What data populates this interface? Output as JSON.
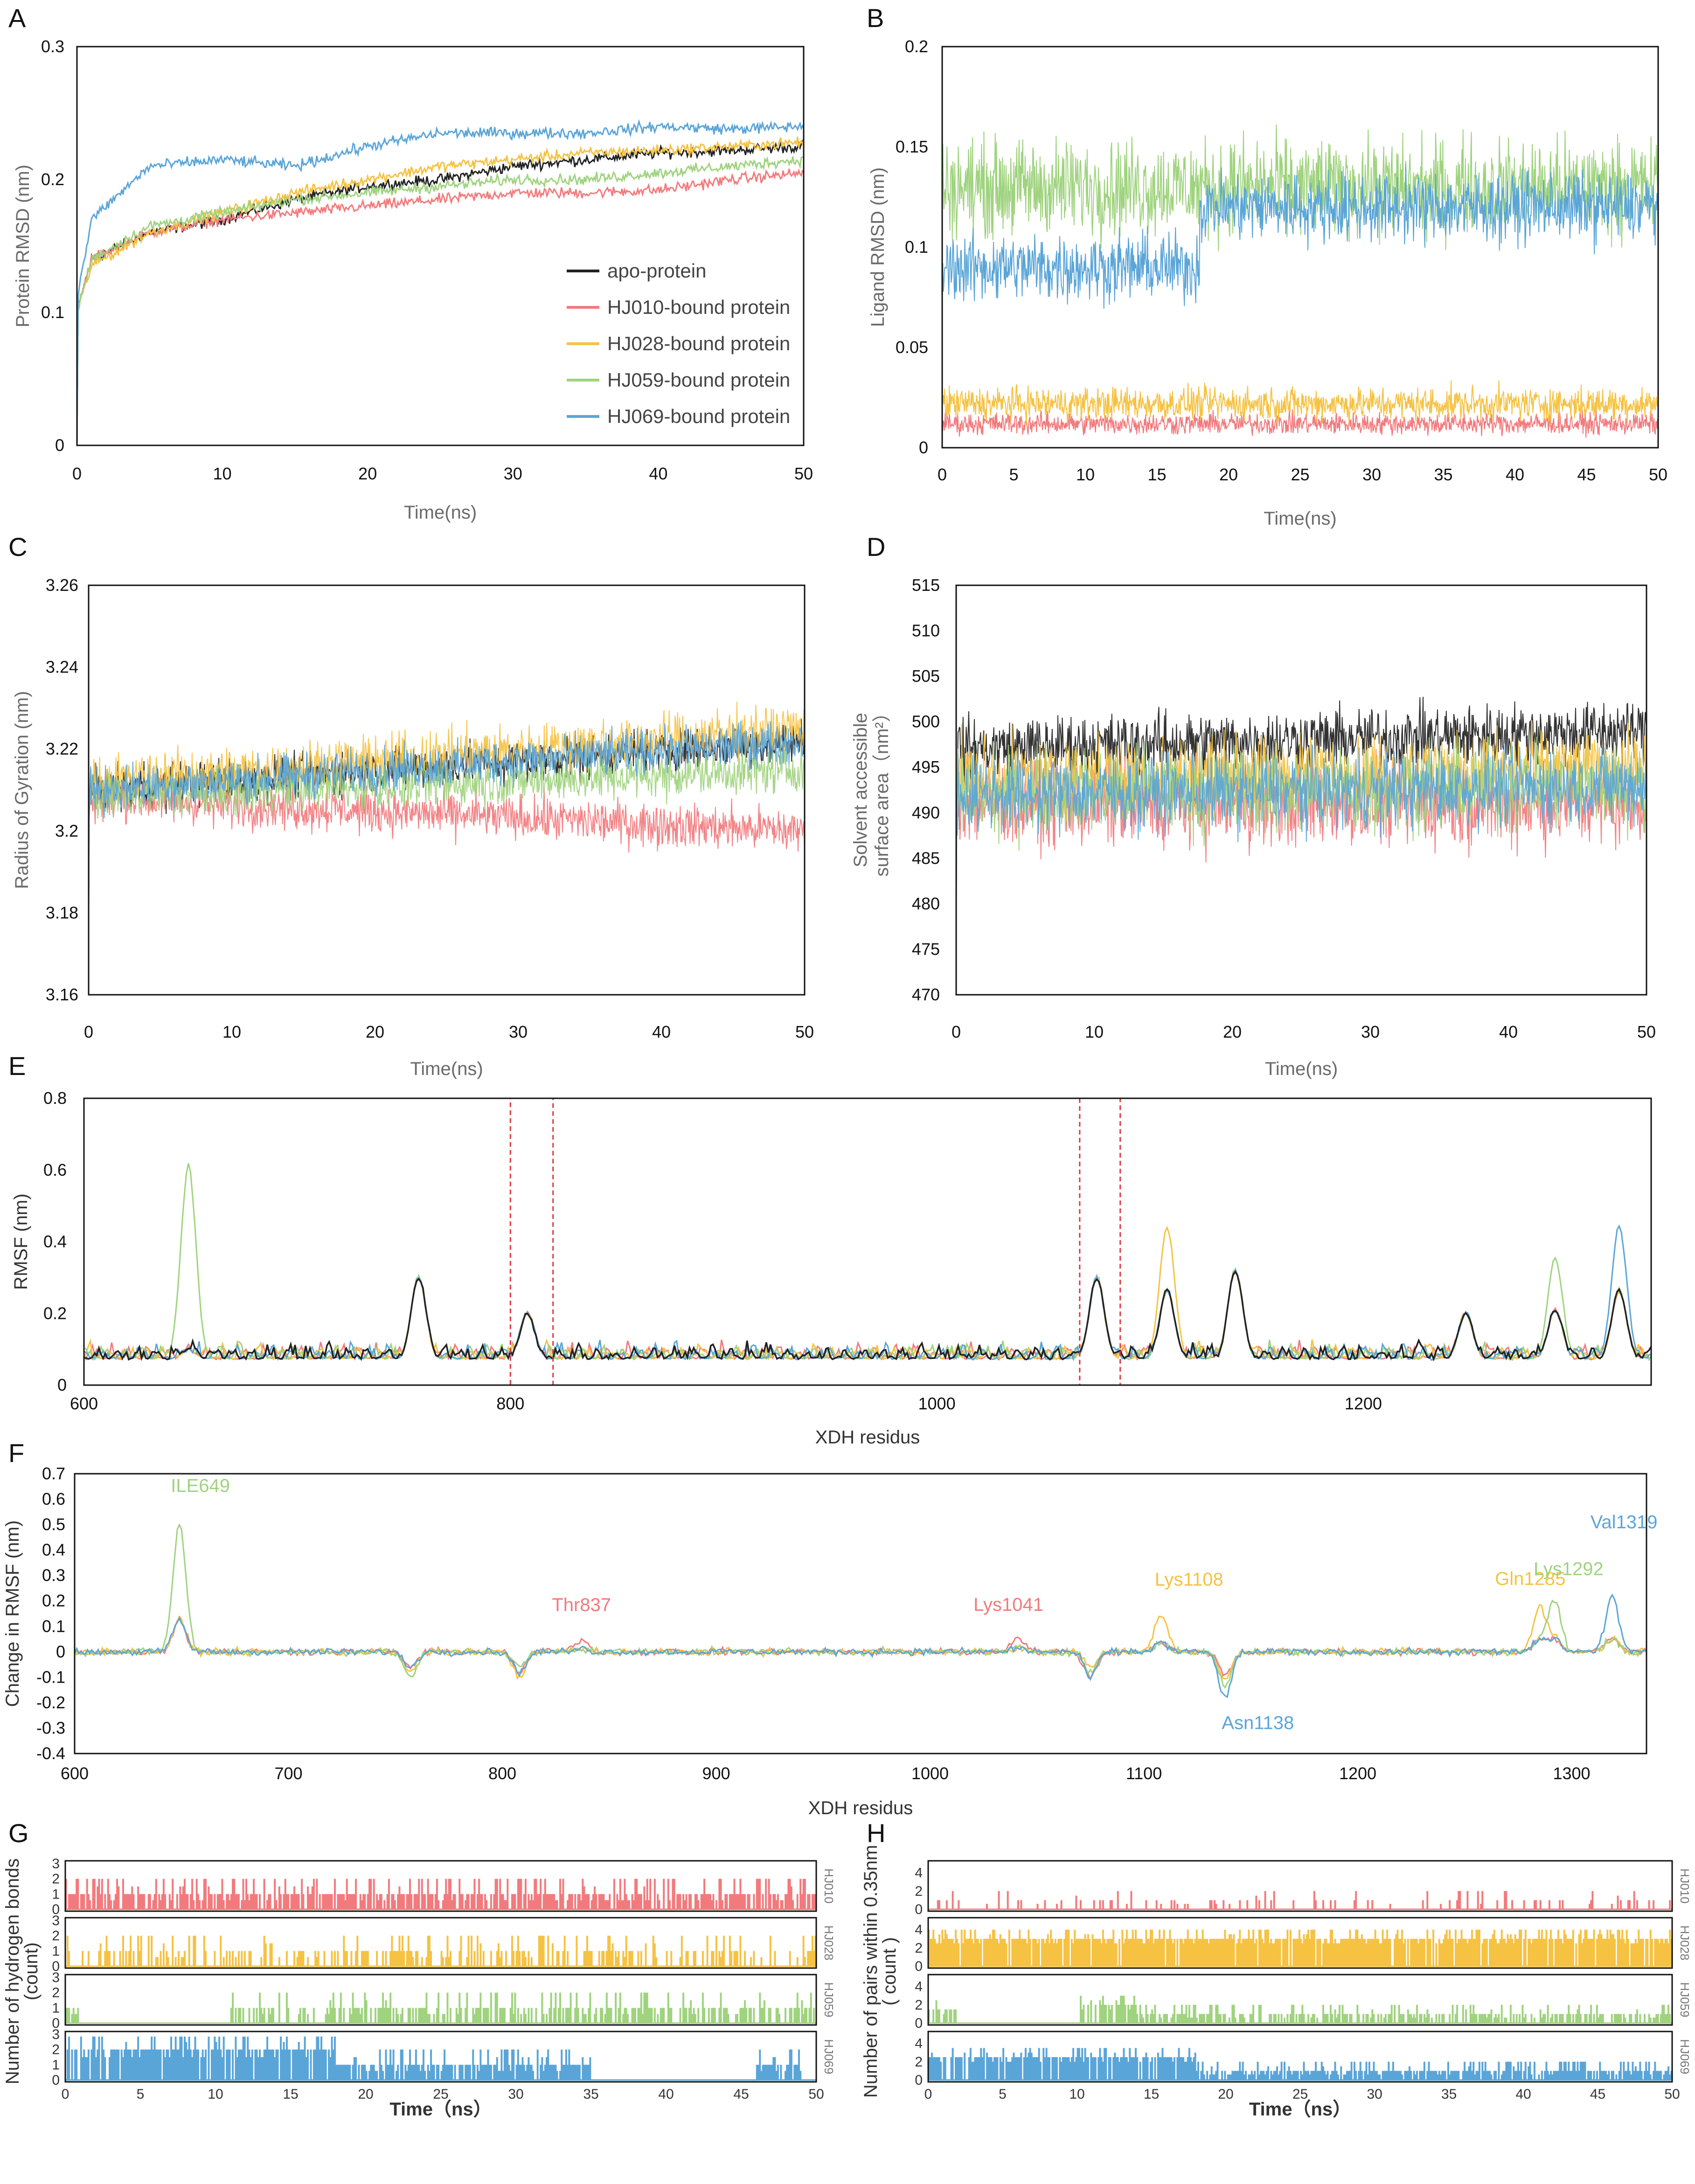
{
  "colors": {
    "apo": "#222222",
    "hj010": "#f27a7d",
    "hj028": "#f5c242",
    "hj059": "#9fd37e",
    "hj069": "#5aa5d8",
    "box": "#d9363e"
  },
  "chart_data": [
    {
      "panel": "A",
      "type": "line",
      "xlabel": "Time(ns)",
      "ylabel": "Protein RMSD (nm)",
      "xlim": [
        0,
        50
      ],
      "ylim": [
        0,
        0.3
      ],
      "xticks": [
        "0",
        "10",
        "20",
        "30",
        "40",
        "50"
      ],
      "yticks": [
        "0",
        "0.1",
        "0.2",
        "0.3"
      ],
      "legend": [
        "apo-protein",
        "HJ010-bound protein",
        "HJ028-bound protein",
        "HJ059-bound protein",
        "HJ069-bound protein"
      ],
      "series": [
        {
          "name": "apo-protein",
          "x": [
            0,
            1,
            5,
            10,
            15,
            20,
            25,
            30,
            35,
            40,
            45,
            50
          ],
          "y": [
            0.1,
            0.14,
            0.16,
            0.17,
            0.185,
            0.195,
            0.2,
            0.21,
            0.215,
            0.22,
            0.222,
            0.225
          ]
        },
        {
          "name": "HJ010-bound protein",
          "x": [
            0,
            1,
            5,
            10,
            15,
            20,
            25,
            30,
            35,
            40,
            45,
            50
          ],
          "y": [
            0.1,
            0.14,
            0.16,
            0.17,
            0.175,
            0.18,
            0.185,
            0.19,
            0.19,
            0.192,
            0.2,
            0.205
          ]
        },
        {
          "name": "HJ028-bound protein",
          "x": [
            0,
            1,
            5,
            10,
            15,
            20,
            25,
            30,
            35,
            40,
            45,
            50
          ],
          "y": [
            0.1,
            0.135,
            0.16,
            0.175,
            0.19,
            0.2,
            0.21,
            0.215,
            0.22,
            0.222,
            0.225,
            0.228
          ]
        },
        {
          "name": "HJ059-bound protein",
          "x": [
            0,
            1,
            5,
            10,
            15,
            20,
            25,
            30,
            35,
            40,
            45,
            50
          ],
          "y": [
            0.1,
            0.14,
            0.165,
            0.175,
            0.185,
            0.19,
            0.195,
            0.2,
            0.2,
            0.205,
            0.21,
            0.215
          ]
        },
        {
          "name": "HJ069-bound protein",
          "x": [
            0,
            1,
            5,
            10,
            15,
            20,
            25,
            30,
            35,
            40,
            45,
            50
          ],
          "y": [
            0.11,
            0.17,
            0.21,
            0.215,
            0.21,
            0.225,
            0.235,
            0.235,
            0.235,
            0.24,
            0.238,
            0.24
          ]
        }
      ]
    },
    {
      "panel": "B",
      "type": "line",
      "xlabel": "Time(ns)",
      "ylabel": "Ligand RMSD (nm)",
      "xlim": [
        0,
        50
      ],
      "ylim": [
        0,
        0.2
      ],
      "xticks": [
        "0",
        "5",
        "10",
        "15",
        "20",
        "25",
        "30",
        "35",
        "40",
        "45",
        "50"
      ],
      "yticks": [
        "0",
        "0.05",
        "0.1",
        "0.15",
        "0.2"
      ],
      "series": [
        {
          "name": "HJ010",
          "mean_segments": [
            [
              0,
              50,
              0.012
            ]
          ],
          "amplitude": 0.008
        },
        {
          "name": "HJ028",
          "mean_segments": [
            [
              0,
              50,
              0.022
            ]
          ],
          "amplitude": 0.012
        },
        {
          "name": "HJ059",
          "mean_segments": [
            [
              0,
              50,
              0.13
            ]
          ],
          "amplitude": 0.035
        },
        {
          "name": "HJ069",
          "mean_segments": [
            [
              0,
              18,
              0.09
            ],
            [
              18,
              50,
              0.12
            ]
          ],
          "amplitude": 0.025
        }
      ]
    },
    {
      "panel": "C",
      "type": "line",
      "xlabel": "Time(ns)",
      "ylabel": "Radius of Gyration (nm)",
      "xlim": [
        0,
        50
      ],
      "ylim": [
        3.16,
        3.26
      ],
      "xticks": [
        "0",
        "10",
        "20",
        "30",
        "40",
        "50"
      ],
      "yticks": [
        "3.16",
        "3.18",
        "3.2",
        "3.22",
        "3.24",
        "3.26"
      ],
      "series": [
        {
          "name": "apo",
          "start": 3.21,
          "end": 3.222,
          "amplitude": 0.008
        },
        {
          "name": "HJ010",
          "start": 3.208,
          "end": 3.2,
          "amplitude": 0.008
        },
        {
          "name": "HJ028",
          "start": 3.212,
          "end": 3.225,
          "amplitude": 0.009
        },
        {
          "name": "HJ059",
          "start": 3.208,
          "end": 3.215,
          "amplitude": 0.008
        },
        {
          "name": "HJ069",
          "start": 3.21,
          "end": 3.222,
          "amplitude": 0.008
        }
      ]
    },
    {
      "panel": "D",
      "type": "line",
      "xlabel": "Time(ns)",
      "ylabel_line1": "Solvent accessible",
      "ylabel_line2": "surface area（nm²）",
      "xlim": [
        0,
        50
      ],
      "ylim": [
        470,
        515
      ],
      "xticks": [
        "0",
        "10",
        "20",
        "30",
        "40",
        "50"
      ],
      "yticks": [
        "470",
        "475",
        "480",
        "485",
        "490",
        "495",
        "500",
        "505",
        "510",
        "515"
      ],
      "series": [
        {
          "name": "apo",
          "start": 497,
          "end": 499,
          "amplitude": 5
        },
        {
          "name": "HJ010",
          "start": 491,
          "end": 491,
          "amplitude": 7
        },
        {
          "name": "HJ028",
          "start": 494,
          "end": 495,
          "amplitude": 6
        },
        {
          "name": "HJ059",
          "start": 492,
          "end": 493,
          "amplitude": 7
        },
        {
          "name": "HJ069",
          "start": 492,
          "end": 493,
          "amplitude": 6
        }
      ]
    },
    {
      "panel": "E",
      "type": "line",
      "xlabel": "XDH residus",
      "ylabel": "RMSF (nm)",
      "xlim": [
        600,
        1335
      ],
      "ylim": [
        0,
        0.8
      ],
      "xticks": [
        "600",
        "800",
        "1000",
        "1200"
      ],
      "yticks": [
        "0",
        "0.2",
        "0.4",
        "0.6",
        "0.8"
      ],
      "highlight_ranges": [
        [
          800,
          820
        ],
        [
          1067,
          1086
        ]
      ],
      "baseline": 0.07,
      "peaks": [
        {
          "x": 649,
          "y": 0.61,
          "series": "HJ059"
        },
        {
          "x": 757,
          "y": 0.3,
          "series": "apo"
        },
        {
          "x": 808,
          "y": 0.2,
          "series": "apo"
        },
        {
          "x": 1075,
          "y": 0.3,
          "series": "apo"
        },
        {
          "x": 1108,
          "y": 0.44,
          "series": "HJ028"
        },
        {
          "x": 1140,
          "y": 0.32,
          "series": "apo"
        },
        {
          "x": 1248,
          "y": 0.2,
          "series": "apo"
        },
        {
          "x": 1290,
          "y": 0.35,
          "series": "HJ059"
        },
        {
          "x": 1320,
          "y": 0.44,
          "series": "HJ069"
        }
      ]
    },
    {
      "panel": "F",
      "type": "line",
      "xlabel": "XDH residus",
      "ylabel": "Change in RMSF (nm)",
      "xlim": [
        600,
        1335
      ],
      "ylim": [
        -0.4,
        0.7
      ],
      "xticks": [
        "600",
        "700",
        "800",
        "900",
        "1000",
        "1100",
        "1200",
        "1300"
      ],
      "yticks": [
        "-0.4",
        "-0.3",
        "-0.2",
        "-0.1",
        "0",
        "0.1",
        "0.2",
        "0.3",
        "0.4",
        "0.5",
        "0.6",
        "0.7"
      ],
      "annotations": [
        {
          "text": "ILE649",
          "x": 649,
          "y": 0.5,
          "series": "HJ059"
        },
        {
          "text": "Thr837",
          "x": 837,
          "y": 0.05,
          "series": "HJ010"
        },
        {
          "text": "Lys1041",
          "x": 1041,
          "y": 0.06,
          "series": "HJ010"
        },
        {
          "text": "Lys1108",
          "x": 1108,
          "y": 0.15,
          "series": "HJ028"
        },
        {
          "text": "Asn1138",
          "x": 1138,
          "y": -0.12,
          "series": "HJ069"
        },
        {
          "text": "Gln1285",
          "x": 1285,
          "y": 0.18,
          "series": "HJ028"
        },
        {
          "text": "Lys1292",
          "x": 1292,
          "y": 0.2,
          "series": "HJ059"
        },
        {
          "text": "Val1319",
          "x": 1319,
          "y": 0.22,
          "series": "HJ069"
        }
      ]
    },
    {
      "panel": "G",
      "type": "bar",
      "xlabel": "Time（ns）",
      "ylabel_line1": "Number of hydrogen bonds",
      "ylabel_line2": "(count)",
      "xlim": [
        0,
        50
      ],
      "xticks": [
        "0",
        "5",
        "10",
        "15",
        "20",
        "25",
        "30",
        "35",
        "40",
        "45",
        "50"
      ],
      "strips": [
        {
          "name": "HJ010",
          "ymax": 3,
          "yticks": [
            "0",
            "1",
            "2",
            "3"
          ],
          "segments": [
            [
              0,
              50,
              1
            ]
          ],
          "density": 0.75
        },
        {
          "name": "HJ028",
          "ymax": 3,
          "yticks": [
            "0",
            "1",
            "2",
            "3"
          ],
          "segments": [
            [
              0,
              50,
              1
            ]
          ],
          "density": 0.45
        },
        {
          "name": "HJ059",
          "ymax": 3,
          "yticks": [
            "0",
            "1",
            "2",
            "3"
          ],
          "segments": [
            [
              0,
              1,
              1
            ],
            [
              11,
              50,
              1
            ]
          ],
          "density": 0.55
        },
        {
          "name": "HJ069",
          "ymax": 3,
          "yticks": [
            "0",
            "1",
            "2",
            "3"
          ],
          "segments": [
            [
              0,
              18,
              2
            ],
            [
              18,
              35,
              1
            ],
            [
              46,
              49,
              1
            ]
          ],
          "density": 0.85
        }
      ]
    },
    {
      "panel": "H",
      "type": "bar",
      "xlabel": "Time（ns）",
      "ylabel_line1": "Number of pairs within 0.35nm",
      "ylabel_line2": "( count )",
      "xlim": [
        0,
        50
      ],
      "xticks": [
        "0",
        "5",
        "10",
        "15",
        "20",
        "25",
        "30",
        "35",
        "40",
        "45",
        "50"
      ],
      "strips": [
        {
          "name": "HJ010",
          "ymax": 5,
          "yticks": [
            "0",
            "2",
            "4"
          ],
          "segments": [
            [
              0,
              50,
              1
            ]
          ],
          "density": 0.2
        },
        {
          "name": "HJ028",
          "ymax": 5,
          "yticks": [
            "0",
            "2",
            "4"
          ],
          "segments": [
            [
              0,
              50,
              3
            ]
          ],
          "density": 0.9
        },
        {
          "name": "HJ059",
          "ymax": 5,
          "yticks": [
            "0",
            "2",
            "4"
          ],
          "segments": [
            [
              0,
              2,
              1.5
            ],
            [
              10,
              14,
              2
            ],
            [
              14,
              24,
              1
            ],
            [
              24,
              50,
              1
            ]
          ],
          "density": 0.6
        },
        {
          "name": "HJ069",
          "ymax": 5,
          "yticks": [
            "0",
            "2",
            "4"
          ],
          "segments": [
            [
              0,
              18,
              2.5
            ],
            [
              18,
              50,
              1
            ]
          ],
          "density": 0.85
        }
      ]
    }
  ]
}
